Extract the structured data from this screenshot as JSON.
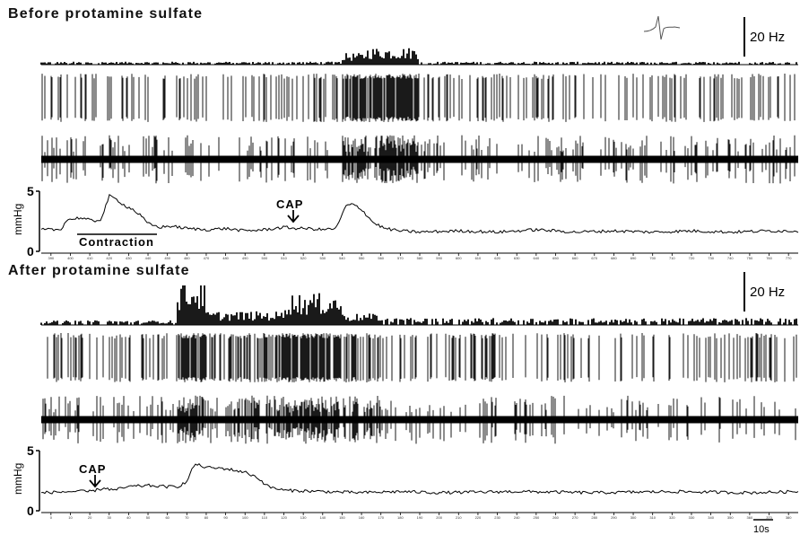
{
  "panels": [
    {
      "title": "Before protamine sulfate",
      "rate_scale": "20 Hz",
      "pressure_unit": "mmHg",
      "pressure_ticks": [
        "5",
        "0"
      ],
      "time_ticks": [
        "390",
        "400",
        "410",
        "420",
        "430",
        "440",
        "450",
        "460",
        "470",
        "480",
        "490",
        "500",
        "510",
        "520",
        "530",
        "540",
        "550",
        "560",
        "570",
        "580",
        "590",
        "600",
        "610",
        "620",
        "630",
        "640",
        "650",
        "660",
        "670",
        "680",
        "690",
        "700",
        "710",
        "720",
        "730",
        "740",
        "750",
        "760",
        "770"
      ],
      "annotations": [
        {
          "text": "CAP",
          "time": 517,
          "kind": "arrow"
        },
        {
          "text": "Contraction",
          "time_start": 400,
          "time_end": 450,
          "kind": "bar"
        }
      ]
    },
    {
      "title": "After protamine sulfate",
      "rate_scale": "20 Hz",
      "pressure_unit": "mmHg",
      "pressure_ticks": [
        "5",
        "0"
      ],
      "time_ticks": [
        "0",
        "10",
        "20",
        "30",
        "40",
        "50",
        "60",
        "70",
        "80",
        "90",
        "100",
        "110",
        "120",
        "130",
        "140",
        "150",
        "160",
        "170",
        "180",
        "190",
        "200",
        "210",
        "220",
        "230",
        "240",
        "250",
        "260",
        "270",
        "280",
        "290",
        "300",
        "310",
        "320",
        "330",
        "340",
        "350",
        "360",
        "370",
        "380"
      ],
      "annotations": [
        {
          "text": "CAP",
          "time": 30,
          "kind": "arrow"
        }
      ],
      "time_scale_bar": "10s"
    }
  ],
  "chart_data": [
    {
      "type": "line",
      "title": "Before protamine sulfate",
      "xlabel": "",
      "ylabel": "mmHg",
      "xlim": [
        385,
        775
      ],
      "ylim": [
        0,
        5
      ],
      "grid": false,
      "series": [
        {
          "x": [
            385,
            395,
            398,
            405,
            412,
            416,
            420,
            424,
            428,
            432,
            436,
            440,
            446,
            452,
            460,
            470,
            480,
            490,
            500,
            510,
            517,
            522,
            530,
            537,
            542,
            546,
            550,
            556,
            562,
            570,
            580,
            600,
            620,
            640,
            660,
            680,
            700,
            720,
            740,
            760,
            775
          ],
          "values": [
            1.8,
            1.8,
            2.6,
            2.8,
            2.5,
            2.7,
            4.6,
            4.3,
            3.8,
            3.5,
            3.0,
            2.3,
            2.0,
            2.1,
            1.9,
            1.8,
            1.9,
            1.7,
            1.8,
            2.0,
            1.9,
            1.9,
            1.8,
            1.9,
            3.8,
            3.9,
            3.5,
            2.4,
            1.9,
            1.7,
            1.6,
            1.7,
            1.6,
            1.8,
            1.6,
            1.7,
            1.6,
            1.7,
            1.6,
            1.7,
            1.7
          ]
        }
      ],
      "rate_bins": [
        {
          "range": [
            385,
            540
          ],
          "level": 2
        },
        {
          "range": [
            540,
            552
          ],
          "level": 8
        },
        {
          "range": [
            552,
            580
          ],
          "level": 12
        },
        {
          "range": [
            580,
            775
          ],
          "level": 2
        }
      ]
    },
    {
      "type": "line",
      "title": "After protamine sulfate",
      "xlabel": "",
      "ylabel": "mmHg",
      "xlim": [
        -5,
        385
      ],
      "ylim": [
        0,
        5
      ],
      "grid": false,
      "series": [
        {
          "x": [
            -5,
            10,
            20,
            28,
            32,
            40,
            50,
            60,
            65,
            70,
            74,
            80,
            90,
            100,
            106,
            112,
            120,
            140,
            160,
            180,
            200,
            240,
            280,
            320,
            360,
            385
          ],
          "values": [
            1.5,
            1.6,
            1.6,
            1.9,
            1.7,
            2.0,
            2.1,
            2.0,
            2.0,
            2.4,
            3.9,
            3.6,
            3.5,
            3.2,
            2.8,
            2.0,
            1.7,
            1.6,
            1.5,
            1.6,
            1.5,
            1.6,
            1.5,
            1.6,
            1.5,
            1.6
          ]
        }
      ],
      "rate_bins": [
        {
          "range": [
            -5,
            65
          ],
          "level": 2
        },
        {
          "range": [
            65,
            80
          ],
          "level": 20
        },
        {
          "range": [
            80,
            120
          ],
          "level": 6
        },
        {
          "range": [
            120,
            150
          ],
          "level": 14
        },
        {
          "range": [
            150,
            170
          ],
          "level": 5
        },
        {
          "range": [
            170,
            385
          ],
          "level": 3
        }
      ]
    }
  ]
}
